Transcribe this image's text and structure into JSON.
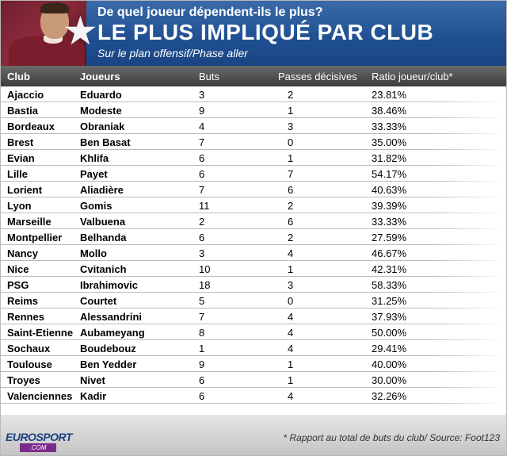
{
  "header": {
    "question": "De quel joueur dépendent-ils le plus?",
    "title": "LE PLUS IMPLIQUÉ PAR CLUB",
    "subtitle": "Sur le plan offensif/Phase aller"
  },
  "columns": [
    "Club",
    "Joueurs",
    "Buts",
    "Passes décisives",
    "Ratio joueur/club*"
  ],
  "chart_data": {
    "type": "table",
    "title": "LE PLUS IMPLIQUÉ PAR CLUB",
    "columns": [
      "Club",
      "Joueurs",
      "Buts",
      "Passes décisives",
      "Ratio joueur/club*"
    ],
    "rows": [
      [
        "Ajaccio",
        "Eduardo",
        "3",
        "2",
        "23.81%"
      ],
      [
        "Bastia",
        "Modeste",
        "9",
        "1",
        "38.46%"
      ],
      [
        "Bordeaux",
        "Obraniak",
        "4",
        "3",
        "33.33%"
      ],
      [
        "Brest",
        "Ben Basat",
        "7",
        "0",
        "35.00%"
      ],
      [
        "Evian",
        "Khlifa",
        "6",
        "1",
        "31.82%"
      ],
      [
        "Lille",
        "Payet",
        "6",
        "7",
        "54.17%"
      ],
      [
        "Lorient",
        "Aliadière",
        "7",
        "6",
        "40.63%"
      ],
      [
        "Lyon",
        "Gomis",
        "11",
        "2",
        "39.39%"
      ],
      [
        "Marseille",
        "Valbuena",
        "2",
        "6",
        "33.33%"
      ],
      [
        "Montpellier",
        "Belhanda",
        "6",
        "2",
        "27.59%"
      ],
      [
        "Nancy",
        "Mollo",
        "3",
        "4",
        "46.67%"
      ],
      [
        "Nice",
        "Cvitanich",
        "10",
        "1",
        "42.31%"
      ],
      [
        "PSG",
        "Ibrahimovic",
        "18",
        "3",
        "58.33%"
      ],
      [
        "Reims",
        "Courtet",
        "5",
        "0",
        "31.25%"
      ],
      [
        "Rennes",
        "Alessandrini",
        "7",
        "4",
        "37.93%"
      ],
      [
        "Saint-Etienne",
        "Aubameyang",
        "8",
        "4",
        "50.00%"
      ],
      [
        "Sochaux",
        "Boudebouz",
        "1",
        "4",
        "29.41%"
      ],
      [
        "Toulouse",
        "Ben Yedder",
        "9",
        "1",
        "40.00%"
      ],
      [
        "Troyes",
        "Nivet",
        "6",
        "1",
        "30.00%"
      ],
      [
        "Valenciennes",
        "Kadir",
        "6",
        "4",
        "32.26%"
      ]
    ]
  },
  "footer": {
    "logo_main": "EUROSPORT",
    "logo_sub": ".COM",
    "note": "* Rapport au total de buts du club/ Source: Foot123"
  },
  "colors": {
    "header_blue": "#1f4f91",
    "table_header": "#4a4a4a",
    "logo_purple": "#7b2a8c"
  }
}
